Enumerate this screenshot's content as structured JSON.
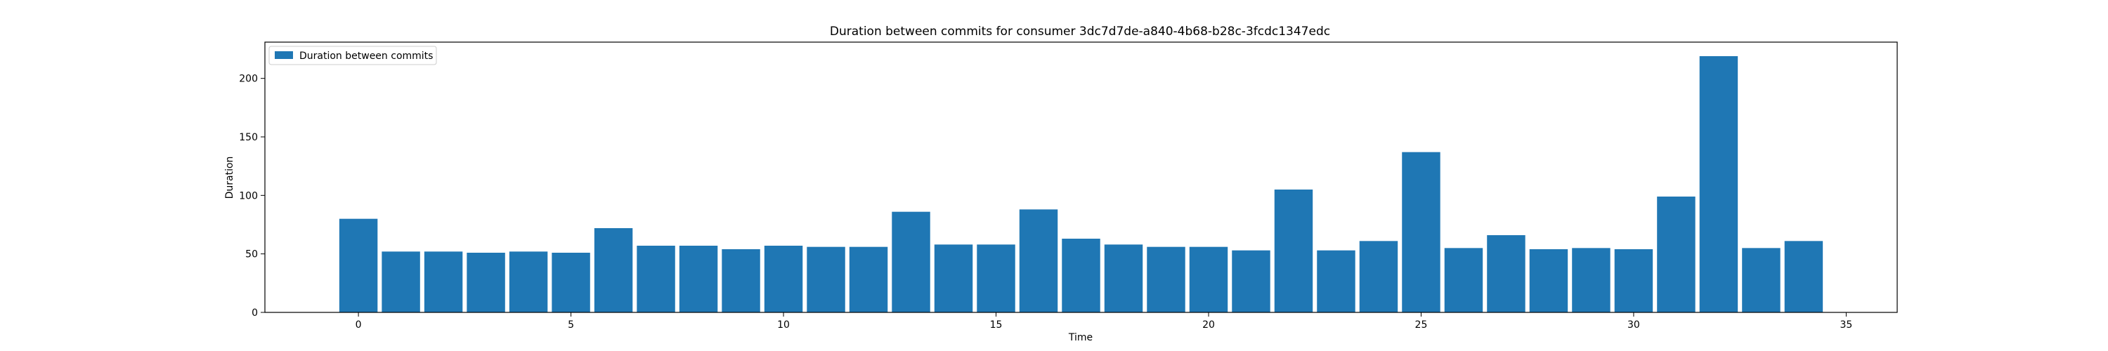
{
  "chart_data": {
    "type": "bar",
    "title": "Duration between commits for consumer 3dc7d7de-a840-4b68-b28c-3fcdc1347edc",
    "xlabel": "Time",
    "ylabel": "Duration",
    "xlim": [
      -2.2,
      36.2
    ],
    "ylim": [
      0,
      231
    ],
    "xticks": [
      0,
      5,
      10,
      15,
      20,
      25,
      30,
      35
    ],
    "yticks": [
      0,
      50,
      100,
      150,
      200
    ],
    "grid": false,
    "legend_position": "top-left",
    "bar_color": "#1f77b4",
    "x": [
      0,
      1,
      2,
      3,
      4,
      5,
      6,
      7,
      8,
      9,
      10,
      11,
      12,
      13,
      14,
      15,
      16,
      17,
      18,
      19,
      20,
      21,
      22,
      23,
      24,
      25,
      26,
      27,
      28,
      29,
      30,
      31,
      32,
      33,
      34
    ],
    "series": [
      {
        "name": "Duration between commits",
        "values": [
          80,
          52,
          52,
          51,
          52,
          51,
          72,
          57,
          57,
          54,
          57,
          56,
          56,
          86,
          58,
          58,
          88,
          63,
          58,
          56,
          56,
          53,
          105,
          53,
          61,
          137,
          55,
          66,
          54,
          55,
          54,
          99,
          219,
          55,
          61
        ]
      }
    ]
  }
}
